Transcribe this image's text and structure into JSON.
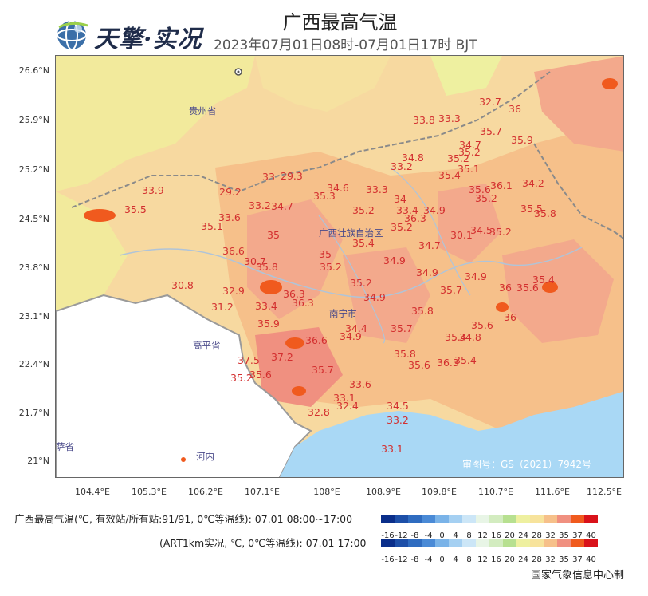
{
  "header": {
    "title": "广西最高气温",
    "brand": "天擎·实况",
    "subtitle": "2023年07月01日08时-07月01日17时 BJT"
  },
  "map": {
    "lat_ticks": [
      "26.6°N",
      "25.9°N",
      "25.2°N",
      "24.5°N",
      "23.8°N",
      "23.1°N",
      "22.4°N",
      "21.7°N",
      "21°N"
    ],
    "lon_ticks": [
      "104.4°E",
      "105.3°E",
      "106.2°E",
      "107.1°E",
      "108°E",
      "108.9°E",
      "109.8°E",
      "110.7°E",
      "111.6°E",
      "112.5°E"
    ],
    "places": {
      "guizhou": "贵州省",
      "guangxi": "广西壮族自治区",
      "nanning": "南宁市",
      "gaoping": "高平省",
      "hanoi": "河内",
      "partial": "萨省"
    },
    "review_number": "审图号：GS（2021）7942号",
    "stations": [
      "32.7",
      "36",
      "33.8",
      "33.3",
      "35.7",
      "35.9",
      "34.7",
      "35.2",
      "34.8",
      "35.2",
      "33.2",
      "35.1",
      "35.4",
      "33",
      "29.3",
      "36.1",
      "34.2",
      "29.2",
      "34.6",
      "33.3",
      "35.6",
      "35.2",
      "33.9",
      "35.3",
      "33.2",
      "34.7",
      "34",
      "35.5",
      "35.8",
      "35.5",
      "35.2",
      "33.4",
      "34.9",
      "33.6",
      "36.3",
      "35.2",
      "35.1",
      "35",
      "30.1",
      "34.5",
      "35.2",
      "35.4",
      "36.6",
      "34.7",
      "30.7",
      "35.8",
      "35",
      "34.9",
      "34.9",
      "34.9",
      "30.8",
      "32.9",
      "35.2",
      "35.4",
      "36.3",
      "36",
      "35.6",
      "36.3",
      "35.2",
      "35.7",
      "31.2",
      "33.4",
      "34.9",
      "35.8",
      "36",
      "35.9",
      "34.4",
      "35.7",
      "35.6",
      "36.6",
      "34.9",
      "35.4",
      "34.8",
      "37.5",
      "37.2",
      "35.8",
      "35.6",
      "36.3",
      "35.4",
      "35.2",
      "35.6",
      "35.7",
      "33.6",
      "33.1",
      "34.5",
      "32.4",
      "32.8",
      "33.2",
      "33.1"
    ]
  },
  "legend": {
    "row1_label": "广西最高气温(℃, 有效站/所有站:91/91, 0℃等温线): 07.01 08:00~17:00",
    "row2_label": "(ART1km实况, ℃, 0℃等温线): 07.01 17:00",
    "ticks": [
      "-16",
      "-12",
      "-8",
      "-4",
      "0",
      "4",
      "8",
      "12",
      "16",
      "20",
      "24",
      "28",
      "32",
      "35",
      "37",
      "40"
    ],
    "colors": [
      "#0a2e8a",
      "#1d4fa8",
      "#2f6cc0",
      "#4a8ad6",
      "#7ab3e8",
      "#a5d0f2",
      "#cce6f7",
      "#e8f5e6",
      "#d3ecc0",
      "#b7e090",
      "#eef0a0",
      "#f7e39c",
      "#f6c08a",
      "#f09080",
      "#f05a1e",
      "#d9121a"
    ]
  },
  "footer": {
    "org": "国家气象信息中心制"
  }
}
